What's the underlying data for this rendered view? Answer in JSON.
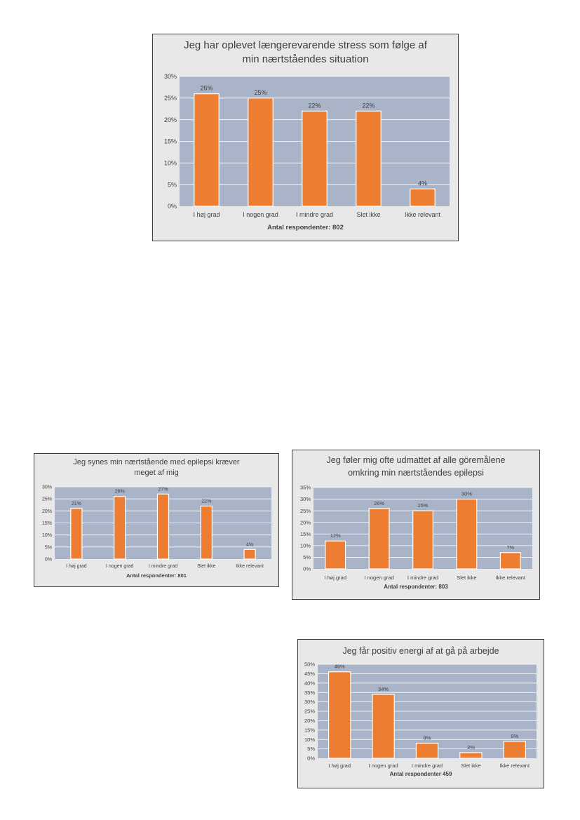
{
  "chart_data": [
    {
      "type": "bar",
      "title": [
        "Jeg har oplevet længerevarende stress som følge af",
        "min nærtståendes situation"
      ],
      "categories": [
        "I høj grad",
        "I nogen grad",
        "I mindre grad",
        "Slet ikke",
        "Ikke relevant"
      ],
      "values": [
        26,
        25,
        22,
        22,
        4
      ],
      "data_labels": [
        "26%",
        "25%",
        "22%",
        "22%",
        "4%"
      ],
      "ylim": [
        0,
        30
      ],
      "yticks": [
        "0%",
        "5%",
        "10%",
        "15%",
        "20%",
        "25%",
        "30%"
      ],
      "xlabel": "Antal respondenter: 802",
      "ylabel": "",
      "grid": true,
      "colors": {
        "bar": "#ed7d31",
        "plot_bg": "#a9b4c8",
        "chart_bg": "#e8e8e8",
        "grid": "#ffffff"
      }
    },
    {
      "type": "bar",
      "title": [
        "Jeg synes min nærtstående med epilepsi kræver",
        "meget af mig"
      ],
      "categories": [
        "I høj grad",
        "I nogen grad",
        "I mindre grad",
        "Slet ikke",
        "Ikke relevant"
      ],
      "values": [
        21,
        26,
        27,
        22,
        4
      ],
      "data_labels": [
        "21%",
        "26%",
        "27%",
        "22%",
        "4%"
      ],
      "ylim": [
        0,
        30
      ],
      "yticks": [
        "0%",
        "5%",
        "10%",
        "15%",
        "20%",
        "25%",
        "30%"
      ],
      "xlabel": "Antal respondenter: 801",
      "ylabel": "",
      "grid": true,
      "colors": {
        "bar": "#ed7d31",
        "plot_bg": "#a9b4c8",
        "chart_bg": "#e8e8e8",
        "grid": "#ffffff"
      }
    },
    {
      "type": "bar",
      "title": [
        "Jeg føler mig ofte udmattet af alle göremålene",
        "omkring min nærtståendes epilepsi"
      ],
      "categories": [
        "I høj grad",
        "I nogen grad",
        "I mindre grad",
        "Slet ikke",
        "Ikke relevant"
      ],
      "values": [
        12,
        26,
        25,
        30,
        7
      ],
      "data_labels": [
        "12%",
        "26%",
        "25%",
        "30%",
        "7%"
      ],
      "ylim": [
        0,
        35
      ],
      "yticks": [
        "0%",
        "5%",
        "10%",
        "15%",
        "20%",
        "25%",
        "30%",
        "35%"
      ],
      "xlabel": "Antal respondenter: 803",
      "ylabel": "",
      "grid": true,
      "colors": {
        "bar": "#ed7d31",
        "plot_bg": "#a9b4c8",
        "chart_bg": "#e8e8e8",
        "grid": "#ffffff"
      }
    },
    {
      "type": "bar",
      "title": [
        "Jeg får positiv energi af at gå på arbejde"
      ],
      "categories": [
        "I høj grad",
        "I nogen grad",
        "I mindre grad",
        "Slet ikke",
        "Ikke relevant"
      ],
      "values": [
        46,
        34,
        8,
        3,
        9
      ],
      "data_labels": [
        "46%",
        "34%",
        "8%",
        "3%",
        "9%"
      ],
      "ylim": [
        0,
        50
      ],
      "yticks": [
        "0%",
        "5%",
        "10%",
        "15%",
        "20%",
        "25%",
        "30%",
        "35%",
        "40%",
        "45%",
        "50%"
      ],
      "xlabel": "Antal respondenter 459",
      "ylabel": "",
      "grid": true,
      "colors": {
        "bar": "#ed7d31",
        "plot_bg": "#a9b4c8",
        "chart_bg": "#e8e8e8",
        "grid": "#ffffff"
      }
    }
  ]
}
